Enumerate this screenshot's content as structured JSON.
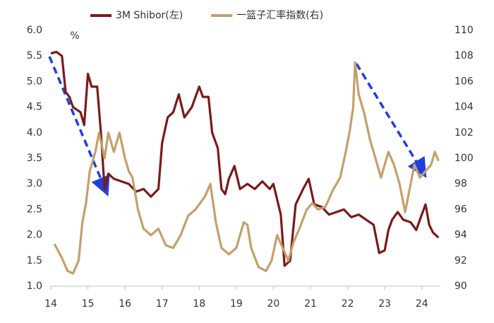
{
  "chart_data": {
    "type": "line",
    "legend": "top",
    "y_unit_label": "%",
    "xlim": [
      14,
      24.5
    ],
    "xticks": [
      14,
      15,
      16,
      17,
      18,
      19,
      20,
      21,
      22,
      23,
      24
    ],
    "ylim": [
      1.0,
      6.0
    ],
    "yticks": [
      {
        "value": 1,
        "label": "1.0"
      },
      {
        "value": 1.5,
        "label": "1.5"
      },
      {
        "value": 2,
        "label": "2.0"
      },
      {
        "value": 2.5,
        "label": "2.5"
      },
      {
        "value": 3,
        "label": "3.0"
      },
      {
        "value": 3.5,
        "label": "3.5"
      },
      {
        "value": 4,
        "label": "4.0"
      },
      {
        "value": 4.5,
        "label": "4.5"
      },
      {
        "value": 5,
        "label": "5.0"
      },
      {
        "value": 5.5,
        "label": "5.5"
      },
      {
        "value": 6,
        "label": "6.0"
      }
    ],
    "y2lim": [
      90,
      110
    ],
    "y2ticks": [
      90,
      92,
      94,
      96,
      98,
      100,
      102,
      104,
      106,
      108,
      110
    ],
    "series": [
      {
        "name": "3M Shibor(左)",
        "color": "#7b1a1a",
        "x": [
          14.0,
          14.15,
          14.3,
          14.4,
          14.5,
          14.6,
          14.8,
          14.9,
          15.0,
          15.1,
          15.25,
          15.35,
          15.45,
          15.55,
          15.7,
          15.9,
          16.1,
          16.3,
          16.5,
          16.7,
          16.9,
          17.0,
          17.15,
          17.3,
          17.45,
          17.6,
          17.8,
          18.0,
          18.1,
          18.25,
          18.35,
          18.5,
          18.6,
          18.7,
          18.8,
          18.95,
          19.1,
          19.3,
          19.5,
          19.7,
          19.9,
          20.0,
          20.2,
          20.3,
          20.45,
          20.6,
          20.8,
          20.95,
          21.1,
          21.3,
          21.5,
          21.7,
          21.9,
          22.1,
          22.3,
          22.5,
          22.7,
          22.85,
          23.0,
          23.1,
          23.2,
          23.35,
          23.5,
          23.7,
          23.85,
          24.0,
          24.1,
          24.2,
          24.3,
          24.45
        ],
        "values": [
          5.55,
          5.58,
          5.5,
          4.8,
          4.7,
          4.5,
          4.4,
          4.15,
          5.15,
          4.9,
          4.9,
          4.0,
          2.9,
          3.2,
          3.1,
          3.05,
          3.0,
          2.85,
          2.9,
          2.75,
          2.9,
          3.8,
          4.3,
          4.4,
          4.75,
          4.3,
          4.5,
          4.9,
          4.7,
          4.7,
          4.0,
          3.7,
          2.9,
          2.8,
          3.1,
          3.35,
          2.9,
          3.0,
          2.9,
          3.05,
          2.9,
          3.0,
          2.4,
          1.4,
          1.5,
          2.6,
          2.9,
          3.1,
          2.6,
          2.55,
          2.4,
          2.45,
          2.5,
          2.35,
          2.4,
          2.3,
          2.2,
          1.65,
          1.7,
          2.1,
          2.3,
          2.45,
          2.3,
          2.25,
          2.1,
          2.4,
          2.6,
          2.2,
          2.05,
          1.95
        ]
      },
      {
        "name": "一篮子汇率指数(右)",
        "color": "#c4a06a",
        "axis": "y2",
        "x": [
          14.1,
          14.3,
          14.45,
          14.6,
          14.75,
          14.85,
          14.95,
          15.05,
          15.2,
          15.3,
          15.45,
          15.55,
          15.7,
          15.85,
          16.0,
          16.1,
          16.2,
          16.35,
          16.5,
          16.7,
          16.9,
          17.1,
          17.3,
          17.5,
          17.7,
          17.9,
          18.15,
          18.3,
          18.45,
          18.6,
          18.8,
          19.0,
          19.2,
          19.3,
          19.4,
          19.6,
          19.8,
          19.95,
          20.1,
          20.25,
          20.4,
          20.55,
          20.7,
          20.9,
          21.05,
          21.2,
          21.4,
          21.6,
          21.8,
          21.95,
          22.05,
          22.15,
          22.2,
          22.3,
          22.45,
          22.6,
          22.75,
          22.9,
          23.0,
          23.1,
          23.25,
          23.4,
          23.55,
          23.7,
          23.8,
          23.95,
          24.1,
          24.25,
          24.35,
          24.45
        ],
        "values": [
          93.3,
          92.2,
          91.2,
          91.0,
          92.0,
          95.0,
          96.5,
          99.0,
          100.5,
          102.0,
          100.0,
          102.0,
          100.5,
          102.0,
          100.0,
          99.0,
          98.5,
          96.0,
          94.5,
          94.0,
          94.5,
          93.2,
          93.0,
          94.0,
          95.5,
          96.0,
          97.0,
          98.0,
          95.0,
          93.0,
          92.5,
          93.0,
          95.0,
          94.8,
          93.0,
          91.5,
          91.2,
          92.0,
          94.0,
          93.0,
          92.0,
          93.5,
          94.5,
          96.0,
          96.5,
          96.0,
          96.2,
          97.5,
          98.5,
          100.5,
          102.0,
          104.0,
          107.5,
          105.0,
          103.5,
          101.5,
          100.0,
          98.5,
          99.5,
          100.5,
          99.5,
          98.0,
          95.8,
          98.0,
          99.5,
          98.5,
          99.0,
          99.5,
          100.5,
          99.8
        ]
      }
    ]
  }
}
